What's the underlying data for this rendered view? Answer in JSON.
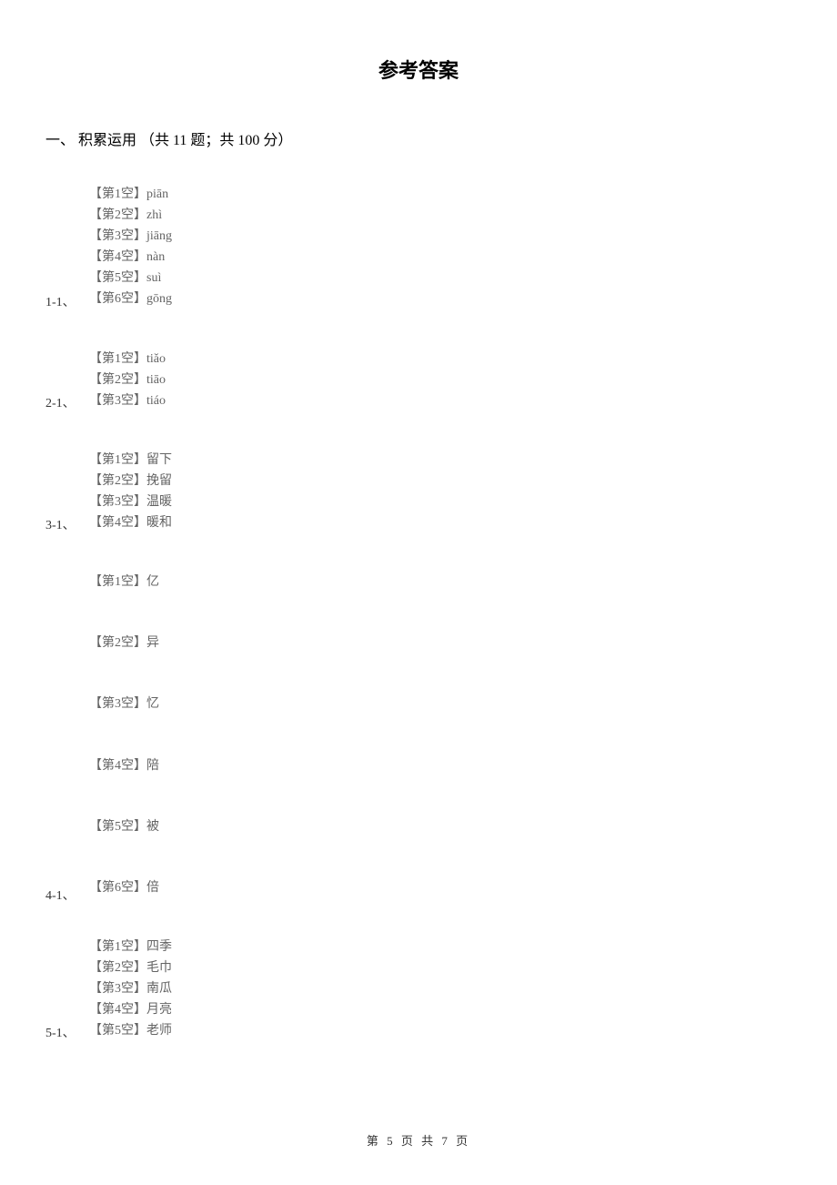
{
  "title": "参考答案",
  "section_heading": "一、 积累运用 （共 11 题；共 100 分）",
  "colors": {
    "background": "#ffffff",
    "title_text": "#000000",
    "section_text": "#000000",
    "label_text": "#333333",
    "answer_text": "#646464",
    "footer_text": "#333333"
  },
  "typography": {
    "title_fontsize": 22,
    "section_fontsize": 16,
    "answer_fontsize": 14,
    "label_fontsize": 14,
    "footer_fontsize": 13,
    "font_family": "SimSun"
  },
  "questions": {
    "q1": {
      "label": "1-1、",
      "answers": [
        "【第1空】piān",
        "【第2空】zhì",
        "【第3空】jiāng",
        "【第4空】nàn",
        "【第5空】suì",
        "【第6空】gōng"
      ]
    },
    "q2": {
      "label": "2-1、",
      "answers": [
        "【第1空】tiǎo",
        "【第2空】tiāo",
        "【第3空】tiáo"
      ]
    },
    "q3": {
      "label": "3-1、",
      "answers": [
        "【第1空】留下",
        "【第2空】挽留",
        "【第3空】温暖",
        "【第4空】暖和"
      ]
    },
    "q4": {
      "label": "4-1、",
      "answers": [
        "【第1空】亿",
        "【第2空】异",
        "【第3空】忆",
        "【第4空】陪",
        "【第5空】被",
        "【第6空】倍"
      ]
    },
    "q5": {
      "label": "5-1、",
      "answers": [
        "【第1空】四季",
        "【第2空】毛巾",
        "【第3空】南瓜",
        "【第4空】月亮",
        "【第5空】老师"
      ]
    }
  },
  "footer": "第 5 页 共 7 页"
}
